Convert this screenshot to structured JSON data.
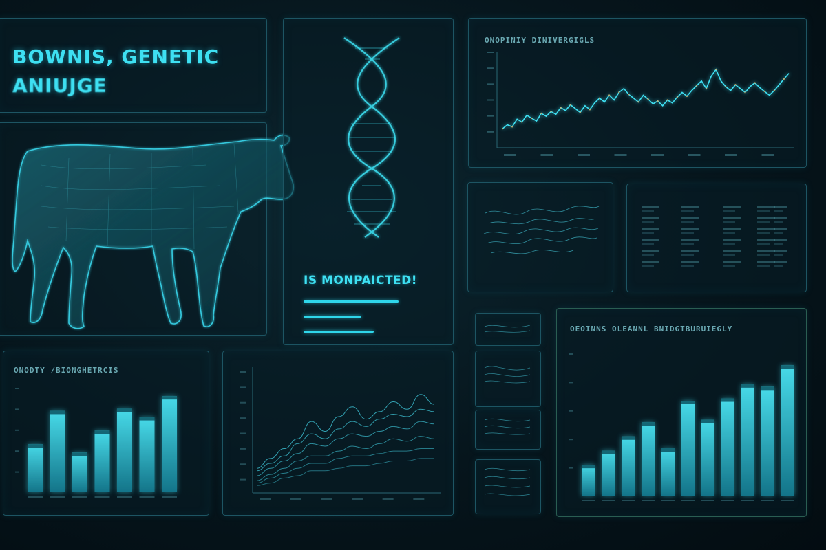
{
  "header": {
    "title_line1": "BOWNIS, GENETIC",
    "title_line2": "ANIUJGE"
  },
  "dna_panel": {
    "status_text": "IS MONPAICTED!",
    "progress": [
      0.7,
      0.44,
      0.58
    ]
  },
  "panels": {
    "top_right_title": "ONOPINIY DINIVERGIGLS",
    "bottom_left_title": "ONODTY /BIONGHETRCIS",
    "bottom_right_title": "OEOINNS OLEANNL BNIDGTBURUIEGLY"
  },
  "colors": {
    "accent": "#2fd6ea",
    "panel_border": "#1d5563",
    "background": "#06151c"
  },
  "chart_data": [
    {
      "type": "line",
      "title": "ONOPINIY DINIVERGIGLS",
      "x": [
        0,
        1,
        2,
        3,
        4,
        5,
        6,
        7,
        8,
        9,
        10,
        11,
        12,
        13,
        14,
        15,
        16,
        17,
        18,
        19,
        20,
        21,
        22,
        23,
        24,
        25,
        26,
        27,
        28,
        29,
        30,
        31,
        32,
        33,
        34,
        35,
        36,
        37,
        38,
        39,
        40,
        41,
        42,
        43,
        44,
        45,
        46,
        47,
        48,
        49,
        50,
        51,
        52,
        53,
        54,
        55,
        56,
        57,
        58,
        59
      ],
      "series": [
        {
          "values": [
            20,
            24,
            22,
            30,
            27,
            34,
            31,
            28,
            36,
            33,
            38,
            35,
            42,
            39,
            45,
            41,
            37,
            44,
            40,
            47,
            52,
            48,
            55,
            50,
            58,
            62,
            56,
            52,
            48,
            55,
            51,
            46,
            49,
            44,
            50,
            47,
            53,
            58,
            54,
            60,
            65,
            70,
            62,
            75,
            82,
            70,
            64,
            60,
            66,
            62,
            58,
            64,
            68,
            63,
            59,
            55,
            60,
            66,
            72,
            78
          ]
        }
      ],
      "ylim": [
        0,
        100
      ]
    },
    {
      "type": "bar",
      "title": "ONODTY /BIONGHETRCIS",
      "categories": [
        "1",
        "2",
        "3",
        "4",
        "5",
        "6",
        "7"
      ],
      "values": [
        46,
        78,
        38,
        59,
        80,
        72,
        92
      ],
      "ylim": [
        0,
        100
      ]
    },
    {
      "type": "line",
      "series": [
        {
          "values": [
            20,
            28,
            36,
            44,
            58,
            50,
            62,
            70,
            60,
            66,
            74,
            68,
            80,
            72
          ]
        },
        {
          "values": [
            18,
            24,
            30,
            40,
            48,
            44,
            52,
            58,
            54,
            60,
            64,
            62,
            68,
            66
          ]
        },
        {
          "values": [
            14,
            20,
            26,
            32,
            40,
            38,
            44,
            48,
            46,
            50,
            54,
            52,
            58,
            56
          ]
        },
        {
          "values": [
            10,
            15,
            20,
            26,
            30,
            30,
            34,
            38,
            36,
            40,
            44,
            42,
            46,
            44
          ]
        },
        {
          "values": [
            8,
            12,
            16,
            20,
            24,
            24,
            28,
            30,
            30,
            32,
            34,
            34,
            36,
            36
          ]
        },
        {
          "values": [
            6,
            8,
            12,
            14,
            18,
            18,
            20,
            22,
            22,
            24,
            26,
            26,
            28,
            28
          ]
        }
      ],
      "ylim": [
        0,
        100
      ]
    },
    {
      "type": "bar",
      "title": "OEOINNS OLEANNL BNIDGTBURUIEGLY",
      "categories": [
        "1",
        "2",
        "3",
        "4",
        "5",
        "6",
        "7",
        "8",
        "9",
        "10",
        "11"
      ],
      "values": [
        26,
        38,
        50,
        62,
        40,
        80,
        64,
        82,
        94,
        92,
        110
      ],
      "ylim": [
        0,
        120
      ]
    }
  ]
}
